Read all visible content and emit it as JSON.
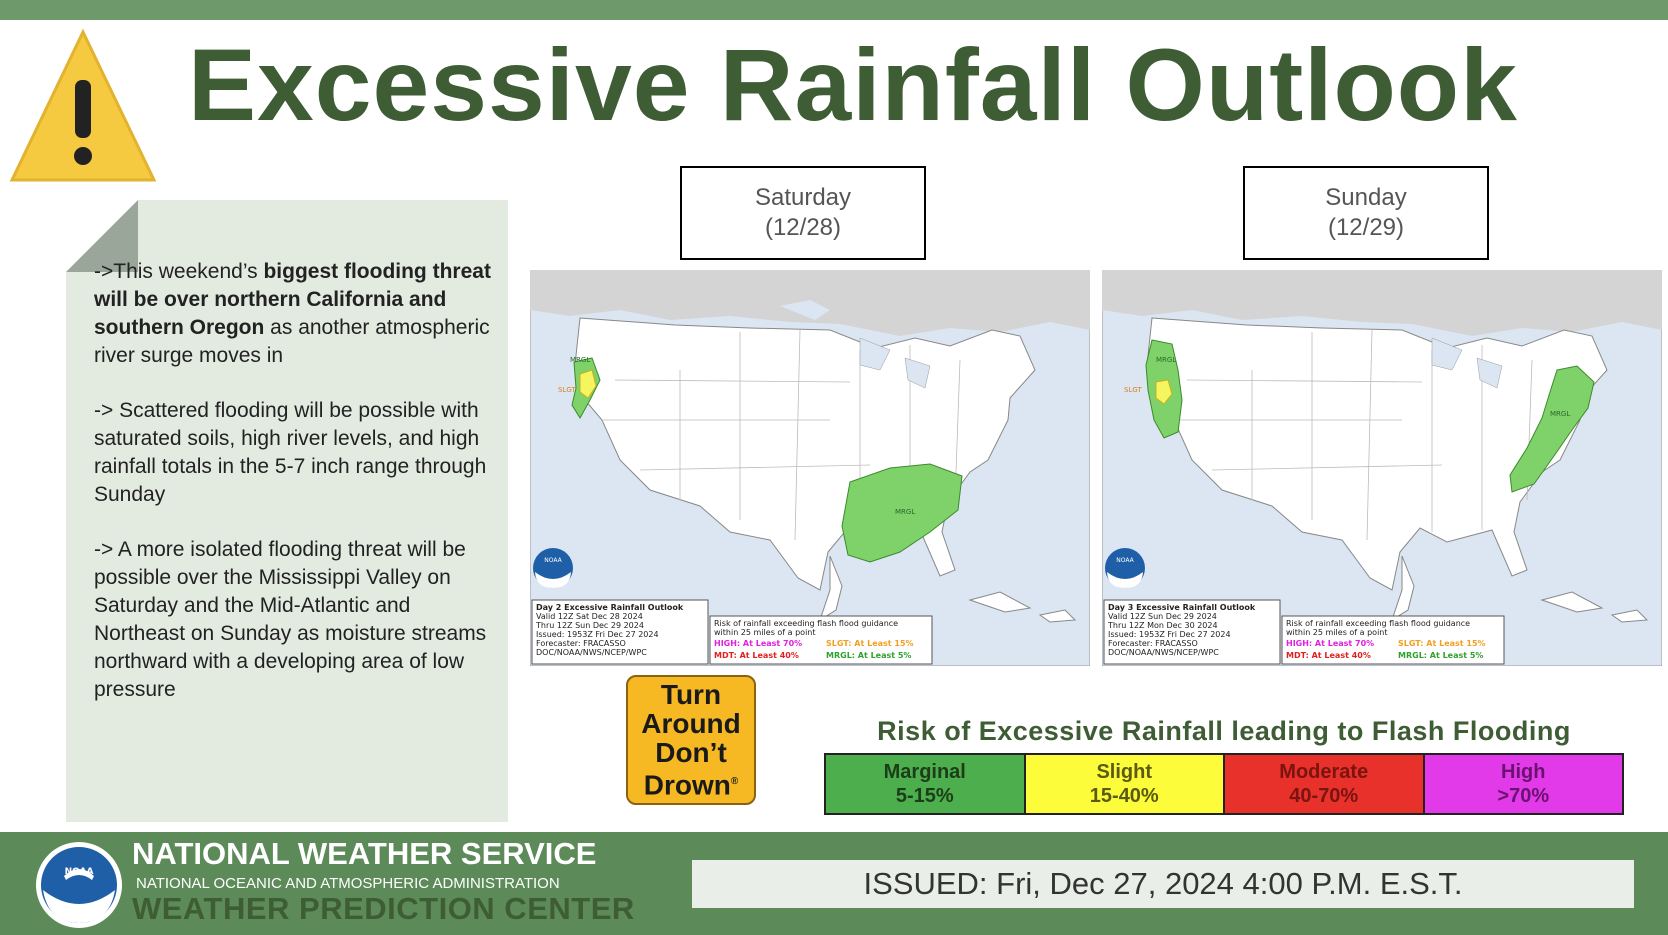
{
  "title": "Excessive Rainfall Outlook",
  "narrative": [
    {
      "before": "->This weekend’s ",
      "bold": "biggest flooding threat will be over northern California and southern Oregon",
      "after": " as another atmospheric river surge moves in"
    },
    {
      "before": "-> Scattered flooding will be possible with saturated soils, high river levels, and high rainfall totals in the 5-7 inch range through Sunday",
      "bold": "",
      "after": ""
    },
    {
      "before": "-> A more isolated flooding threat will be possible over the Mississippi Valley on Saturday and the Mid-Atlantic and Northeast on Sunday as moisture streams northward with a developing area of low pressure",
      "bold": "",
      "after": ""
    }
  ],
  "days": [
    {
      "name": "Saturday",
      "date": "(12/28)",
      "info": [
        "Day 2 Excessive Rainfall Outlook",
        "Valid 12Z Sat Dec 28 2024",
        "Thru 12Z Sun Dec 29 2024",
        "Issued: 1953Z Fri Dec 27 2024",
        "Forecaster: FRACASSO",
        "DOC/NOAA/NWS/NCEP/WPC"
      ],
      "area_labels": [
        "MRGL",
        "SLGT",
        "MRGL"
      ]
    },
    {
      "name": "Sunday",
      "date": "(12/29)",
      "info": [
        "Day 3 Excessive Rainfall Outlook",
        "Valid 12Z Sun Dec 29 2024",
        "Thru 12Z Mon Dec 30 2024",
        "Issued: 1953Z Fri Dec 27 2024",
        "Forecaster: FRACASSO",
        "DOC/NOAA/NWS/NCEP/WPC"
      ],
      "area_labels": [
        "MRGL",
        "SLGT",
        "MRGL"
      ]
    }
  ],
  "map_legend": {
    "line1": "Risk of rainfall exceeding flash flood guidance",
    "line2": "within 25 miles of a point",
    "high": "HIGH: At Least 70%",
    "slight": "SLGT: At Least 15%",
    "moderate": "MDT: At Least 40%",
    "marginal": "MRGL: At Least 5%"
  },
  "noaa_logo_text": "NOAA",
  "turn_around": [
    "Turn",
    "Around",
    "Don’t",
    "Drown"
  ],
  "turn_around_mark": "®",
  "risk": {
    "title": "Risk of Excessive Rainfall leading to Flash Flooding",
    "levels": [
      {
        "name": "Marginal",
        "range": "5-15%",
        "color": "#4cae4c",
        "text_color": "#1d3d1a"
      },
      {
        "name": "Slight",
        "range": "15-40%",
        "color": "#fcfc3a",
        "text_color": "#5a5a10"
      },
      {
        "name": "Moderate",
        "range": "40-70%",
        "color": "#e8312a",
        "text_color": "#7a1410"
      },
      {
        "name": "High",
        "range": ">70%",
        "color": "#e23ae8",
        "text_color": "#6a1270"
      }
    ]
  },
  "footer": {
    "agency": "NATIONAL WEATHER SERVICE",
    "parent": "NATIONAL OCEANIC AND ATMOSPHERIC ADMINISTRATION",
    "center": "WEATHER PREDICTION CENTER",
    "issued": "ISSUED: Fri, Dec 27, 2024 4:00 P.M. E.S.T."
  },
  "colors": {
    "title_green": "#3e5d35",
    "bar_green": "#6e9a6b",
    "footer_green": "#5d8a59",
    "panel": "#e3ebe1",
    "warning": "#f5c940"
  }
}
